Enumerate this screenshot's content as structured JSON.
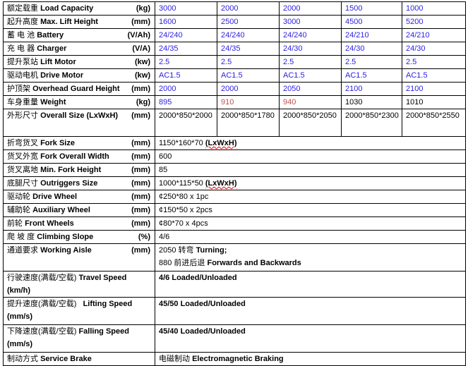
{
  "models": [
    {
      "label": {
        "cn": "额定载重",
        "en": "Load Capacity",
        "unit": "(kg)"
      },
      "values": [
        "3000",
        "2000",
        "2000",
        "1500",
        "1000"
      ],
      "color": "blue"
    },
    {
      "label": {
        "cn": "起升高度",
        "en": "Max. Lift Height",
        "unit": "(mm)"
      },
      "values": [
        "1600",
        "2500",
        "3000",
        "4500",
        "5200"
      ],
      "color": "blue"
    },
    {
      "label": {
        "cn": "蓄 电 池",
        "en": "Battery",
        "unit": "(V/Ah)"
      },
      "values": [
        "24/240",
        "24/240",
        "24/240",
        "24/210",
        "24/210"
      ],
      "color": "blue"
    },
    {
      "label": {
        "cn": "充  电  器",
        "en": "Charger",
        "unit": "(V/A)"
      },
      "values": [
        "24/35",
        "24/35",
        "24/30",
        "24/30",
        "24/30"
      ],
      "color": "blue"
    },
    {
      "label": {
        "cn": "提升泵站",
        "en": "Lift Motor",
        "unit": "(kw)"
      },
      "values": [
        "2.5",
        "2.5",
        "2.5",
        "2.5",
        "2.5"
      ],
      "color": "blue"
    },
    {
      "label": {
        "cn": "驱动电机",
        "en": "Drive Motor",
        "unit": "(kw)"
      },
      "values": [
        "AC1.5",
        "AC1.5",
        "AC1.5",
        "AC1.5",
        "AC1.5"
      ],
      "color": "blue"
    },
    {
      "label": {
        "cn": "护顶架",
        "en": "Overhead Guard Height",
        "unit": "(mm)"
      },
      "values": [
        "2000",
        "2000",
        "2050",
        "2100",
        "2100"
      ],
      "color": "blue"
    },
    {
      "label": {
        "cn": "车身重量",
        "en": "Weight",
        "unit": "(kg)"
      },
      "values": [
        "895",
        "910",
        "940",
        "1030",
        "1010"
      ],
      "colors": [
        "blue",
        "red",
        "red",
        "black",
        "black"
      ]
    },
    {
      "label": {
        "cn": "外形尺寸",
        "en": "Overall Size (LxWxH)",
        "unit": "(mm)"
      },
      "values": [
        "2000*850*2000",
        "2000*850*1780",
        "2000*850*2050",
        "2000*850*2300",
        "2000*850*2550"
      ],
      "color": "black"
    }
  ],
  "specs": [
    {
      "cn": "折弯货叉",
      "en": "Fork Size",
      "unit": "(mm)",
      "value": "1150*160*70",
      "suffix": "(LxWxH)"
    },
    {
      "cn": "货叉外宽",
      "en": "Fork Overall Width",
      "unit": "(mm)",
      "value": "600"
    },
    {
      "cn": "货叉离地",
      "en": "Min. Fork Height",
      "unit": "(mm)",
      "value": "85"
    },
    {
      "cn": "底腿尺寸",
      "en": "Outriggers Size",
      "unit": "(mm)",
      "value": "1000*115*50",
      "suffix": "(LxWxH)"
    },
    {
      "cn": "驱动轮",
      "en": "Drive Wheel",
      "unit": "(mm)",
      "value": "¢250*80 x 1pc"
    },
    {
      "cn": "辅助轮",
      "en": "Auxiliary Wheel",
      "unit": "(mm)",
      "value": "¢150*50 x 2pcs"
    },
    {
      "cn": "前轮",
      "en": "Front Wheels",
      "unit": "(mm)",
      "value": "¢80*70 x 4pcs"
    },
    {
      "cn": "爬 坡 度",
      "en": "Climbing Slope",
      "unit": "(%)",
      "value": "4/6"
    }
  ],
  "aisle": {
    "cn": "通道要求",
    "en": "Working Aisle",
    "unit": "(mm)",
    "line1_num": "2050",
    "line1_cn": "转弯",
    "line1_en": "Turning;",
    "line2_num": "880",
    "line2_cn": "前进后退",
    "line2_en": "Forwards and Backwards"
  },
  "travel": {
    "cn": "行驶速度(满载/空载)",
    "en": "Travel Speed (km/h)",
    "value": "4/6 Loaded/Unloaded"
  },
  "lifting": {
    "cn": "提升速度(满载/空载)",
    "en": "Lifting Speed",
    "unit": "(mm/s)",
    "value": "45/50 Loaded/Unloaded"
  },
  "falling": {
    "cn": "下降速度(满载/空载)",
    "en": "Falling Speed",
    "unit": "(mm/s)",
    "value": "45/40 Loaded/Unloaded"
  },
  "brake": {
    "cn": "制动方式",
    "en": "Service Brake",
    "value_cn": "电磁制动",
    "value_en": "Electromagnetic Braking"
  },
  "colors": {
    "blue": "#2a1fe0",
    "red": "#c0504d",
    "black": "#000000"
  }
}
